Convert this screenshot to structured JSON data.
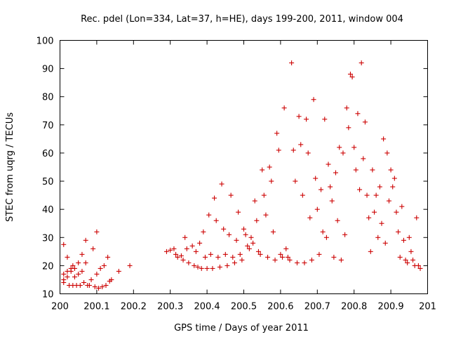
{
  "chart_data": {
    "type": "scatter",
    "title": "Rec. pdel (Lon=334, Lat=37, h=HE), days 199-200, 2011, window 004",
    "xlabel": "GPS time / Days of year 2011",
    "ylabel": "STEC from uqrg / TECUs",
    "xlim": [
      200,
      201
    ],
    "ylim": [
      10,
      100
    ],
    "x_ticks": [
      200,
      200.1,
      200.2,
      200.3,
      200.4,
      200.5,
      200.6,
      200.7,
      200.8,
      200.9,
      201
    ],
    "x_tick_labels": [
      "200",
      "200.1",
      "200.2",
      "200.3",
      "200.4",
      "200.5",
      "200.6",
      "200.7",
      "200.8",
      "200.9",
      "201"
    ],
    "y_ticks": [
      10,
      20,
      30,
      40,
      50,
      60,
      70,
      80,
      90,
      100
    ],
    "y_tick_labels": [
      "10",
      "20",
      "30",
      "40",
      "50",
      "60",
      "70",
      "80",
      "90",
      "100"
    ],
    "grid": false,
    "marker": "+",
    "color": "#cc0000",
    "series": [
      {
        "name": "STEC",
        "points": [
          [
            200.01,
            27.5
          ],
          [
            200.01,
            17
          ],
          [
            200.01,
            15
          ],
          [
            200.01,
            14
          ],
          [
            200.02,
            23
          ],
          [
            200.02,
            18
          ],
          [
            200.02,
            16
          ],
          [
            200.025,
            13
          ],
          [
            200.03,
            19
          ],
          [
            200.03,
            18
          ],
          [
            200.035,
            20
          ],
          [
            200.035,
            13
          ],
          [
            200.04,
            19
          ],
          [
            200.04,
            16
          ],
          [
            200.045,
            13
          ],
          [
            200.05,
            21
          ],
          [
            200.05,
            17
          ],
          [
            200.055,
            13
          ],
          [
            200.06,
            24
          ],
          [
            200.06,
            18
          ],
          [
            200.065,
            14
          ],
          [
            200.07,
            29
          ],
          [
            200.07,
            21
          ],
          [
            200.075,
            13
          ],
          [
            200.08,
            13
          ],
          [
            200.085,
            15
          ],
          [
            200.09,
            26
          ],
          [
            200.095,
            12.5
          ],
          [
            200.1,
            32
          ],
          [
            200.1,
            17
          ],
          [
            200.105,
            12
          ],
          [
            200.11,
            19
          ],
          [
            200.115,
            12.5
          ],
          [
            200.12,
            20
          ],
          [
            200.125,
            13
          ],
          [
            200.13,
            23
          ],
          [
            200.135,
            14.5
          ],
          [
            200.14,
            15
          ],
          [
            200.16,
            18
          ],
          [
            200.19,
            20
          ],
          [
            200.29,
            25
          ],
          [
            200.3,
            25.5
          ],
          [
            200.31,
            26
          ],
          [
            200.315,
            24
          ],
          [
            200.32,
            23
          ],
          [
            200.33,
            23.5
          ],
          [
            200.335,
            22
          ],
          [
            200.34,
            30
          ],
          [
            200.345,
            26
          ],
          [
            200.35,
            21
          ],
          [
            200.36,
            27
          ],
          [
            200.365,
            20
          ],
          [
            200.37,
            25
          ],
          [
            200.375,
            19.5
          ],
          [
            200.38,
            28
          ],
          [
            200.385,
            19
          ],
          [
            200.39,
            32
          ],
          [
            200.395,
            23
          ],
          [
            200.4,
            19
          ],
          [
            200.405,
            38
          ],
          [
            200.41,
            24
          ],
          [
            200.415,
            19
          ],
          [
            200.42,
            44
          ],
          [
            200.425,
            36
          ],
          [
            200.43,
            23
          ],
          [
            200.435,
            19.5
          ],
          [
            200.44,
            49
          ],
          [
            200.445,
            33
          ],
          [
            200.45,
            24
          ],
          [
            200.455,
            20
          ],
          [
            200.46,
            31
          ],
          [
            200.465,
            45
          ],
          [
            200.47,
            23
          ],
          [
            200.475,
            21
          ],
          [
            200.48,
            29
          ],
          [
            200.485,
            39
          ],
          [
            200.49,
            24
          ],
          [
            200.495,
            22
          ],
          [
            200.5,
            33
          ],
          [
            200.505,
            31
          ],
          [
            200.51,
            27
          ],
          [
            200.515,
            26
          ],
          [
            200.52,
            30
          ],
          [
            200.525,
            28
          ],
          [
            200.53,
            43
          ],
          [
            200.535,
            36
          ],
          [
            200.54,
            25
          ],
          [
            200.545,
            24
          ],
          [
            200.55,
            54
          ],
          [
            200.555,
            45
          ],
          [
            200.56,
            38
          ],
          [
            200.565,
            23
          ],
          [
            200.57,
            55
          ],
          [
            200.575,
            50
          ],
          [
            200.58,
            32
          ],
          [
            200.585,
            22
          ],
          [
            200.59,
            67
          ],
          [
            200.595,
            61
          ],
          [
            200.6,
            24
          ],
          [
            200.605,
            23
          ],
          [
            200.61,
            76
          ],
          [
            200.615,
            26
          ],
          [
            200.62,
            23
          ],
          [
            200.625,
            22
          ],
          [
            200.63,
            92
          ],
          [
            200.635,
            61
          ],
          [
            200.64,
            50
          ],
          [
            200.645,
            21
          ],
          [
            200.65,
            73
          ],
          [
            200.655,
            63
          ],
          [
            200.66,
            45
          ],
          [
            200.665,
            21
          ],
          [
            200.67,
            72
          ],
          [
            200.675,
            60
          ],
          [
            200.68,
            37
          ],
          [
            200.685,
            22
          ],
          [
            200.69,
            79
          ],
          [
            200.695,
            51
          ],
          [
            200.7,
            40
          ],
          [
            200.705,
            24
          ],
          [
            200.71,
            47
          ],
          [
            200.715,
            32
          ],
          [
            200.72,
            72
          ],
          [
            200.725,
            30
          ],
          [
            200.73,
            56
          ],
          [
            200.735,
            48
          ],
          [
            200.74,
            43
          ],
          [
            200.745,
            23
          ],
          [
            200.75,
            53
          ],
          [
            200.755,
            36
          ],
          [
            200.76,
            62
          ],
          [
            200.765,
            22
          ],
          [
            200.77,
            60
          ],
          [
            200.775,
            31
          ],
          [
            200.78,
            76
          ],
          [
            200.785,
            69
          ],
          [
            200.79,
            88
          ],
          [
            200.795,
            87
          ],
          [
            200.8,
            62
          ],
          [
            200.805,
            54
          ],
          [
            200.81,
            74
          ],
          [
            200.815,
            47
          ],
          [
            200.82,
            92
          ],
          [
            200.825,
            58
          ],
          [
            200.83,
            71
          ],
          [
            200.835,
            45
          ],
          [
            200.84,
            37
          ],
          [
            200.845,
            25
          ],
          [
            200.85,
            54
          ],
          [
            200.855,
            39
          ],
          [
            200.86,
            45
          ],
          [
            200.865,
            30
          ],
          [
            200.87,
            48
          ],
          [
            200.875,
            35
          ],
          [
            200.88,
            65
          ],
          [
            200.885,
            28
          ],
          [
            200.89,
            60
          ],
          [
            200.895,
            43
          ],
          [
            200.9,
            54
          ],
          [
            200.905,
            48
          ],
          [
            200.91,
            51
          ],
          [
            200.915,
            39
          ],
          [
            200.92,
            32
          ],
          [
            200.925,
            23
          ],
          [
            200.93,
            41
          ],
          [
            200.935,
            29
          ],
          [
            200.94,
            22
          ],
          [
            200.945,
            21
          ],
          [
            200.95,
            30
          ],
          [
            200.955,
            25
          ],
          [
            200.96,
            22
          ],
          [
            200.965,
            20
          ],
          [
            200.97,
            37
          ],
          [
            200.975,
            20
          ],
          [
            200.98,
            19
          ]
        ]
      }
    ]
  }
}
